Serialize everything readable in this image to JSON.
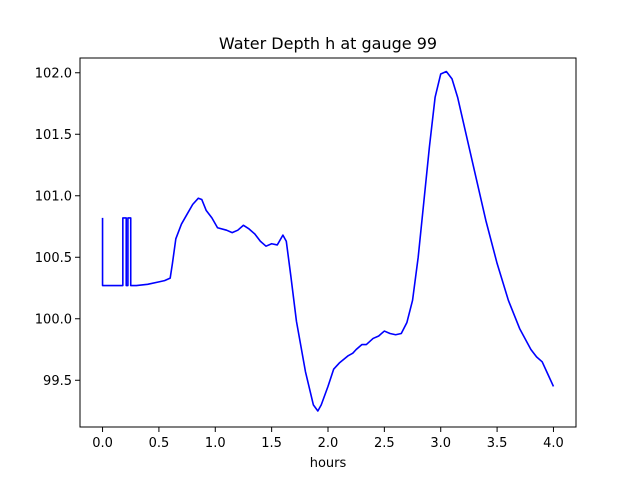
{
  "chart_data": {
    "type": "line",
    "title": "Water Depth h at gauge 99",
    "xlabel": "hours",
    "ylabel": "",
    "xlim": [
      -0.2,
      4.2
    ],
    "ylim": [
      99.12,
      102.12
    ],
    "grid": false,
    "x_ticks": [
      0.0,
      0.5,
      1.0,
      1.5,
      2.0,
      2.5,
      3.0,
      3.5,
      4.0
    ],
    "x_tick_labels": [
      "0.0",
      "0.5",
      "1.0",
      "1.5",
      "2.0",
      "2.5",
      "3.0",
      "3.5",
      "4.0"
    ],
    "y_ticks": [
      99.5,
      100.0,
      100.5,
      101.0,
      101.5,
      102.0
    ],
    "y_tick_labels": [
      "99.5",
      "100.0",
      "100.5",
      "101.0",
      "101.5",
      "102.0"
    ],
    "series": [
      {
        "color": "#0000ff",
        "x": [
          0.0,
          0.0,
          0.18,
          0.18,
          0.21,
          0.21,
          0.225,
          0.225,
          0.25,
          0.25,
          0.26,
          0.3,
          0.4,
          0.5,
          0.55,
          0.6,
          0.62,
          0.65,
          0.7,
          0.75,
          0.8,
          0.85,
          0.88,
          0.92,
          0.97,
          1.02,
          1.1,
          1.15,
          1.2,
          1.25,
          1.3,
          1.35,
          1.4,
          1.45,
          1.5,
          1.55,
          1.6,
          1.63,
          1.67,
          1.72,
          1.8,
          1.87,
          1.91,
          1.94,
          2.0,
          2.05,
          2.1,
          2.18,
          2.22,
          2.25,
          2.3,
          2.34,
          2.4,
          2.45,
          2.5,
          2.55,
          2.6,
          2.65,
          2.7,
          2.75,
          2.8,
          2.85,
          2.9,
          2.95,
          3.0,
          3.05,
          3.1,
          3.15,
          3.2,
          3.3,
          3.4,
          3.5,
          3.6,
          3.7,
          3.8,
          3.85,
          3.9,
          3.95,
          4.0
        ],
        "y": [
          100.82,
          100.27,
          100.27,
          100.82,
          100.82,
          100.27,
          100.27,
          100.82,
          100.82,
          100.27,
          100.27,
          100.27,
          100.28,
          100.3,
          100.31,
          100.33,
          100.45,
          100.65,
          100.77,
          100.85,
          100.93,
          100.98,
          100.97,
          100.88,
          100.82,
          100.74,
          100.72,
          100.7,
          100.72,
          100.76,
          100.73,
          100.69,
          100.63,
          100.59,
          100.61,
          100.6,
          100.68,
          100.63,
          100.35,
          99.98,
          99.57,
          99.3,
          99.25,
          99.3,
          99.45,
          99.59,
          99.64,
          99.7,
          99.72,
          99.75,
          99.79,
          99.79,
          99.84,
          99.86,
          99.9,
          99.88,
          99.87,
          99.88,
          99.97,
          100.15,
          100.5,
          100.95,
          101.4,
          101.8,
          101.99,
          102.01,
          101.95,
          101.8,
          101.6,
          101.2,
          100.8,
          100.45,
          100.15,
          99.92,
          99.75,
          99.69,
          99.65,
          99.55,
          99.45
        ]
      }
    ]
  }
}
